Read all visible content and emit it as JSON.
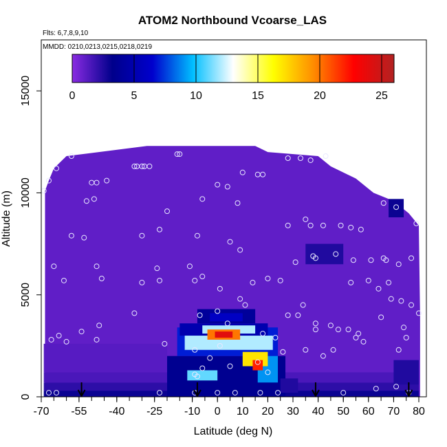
{
  "chart_data": {
    "type": "heatmap",
    "title": "ATOM2 Northbound Vcoarse_LAS",
    "subtitle_flights": "Flts: 6,7,8,9,10",
    "subtitle_dates": "MMDD: 0210,0213,0215,0218,0219",
    "xlabel": "Latitude (deg N)",
    "ylabel": "Altitude (m)",
    "xlim": [
      -70,
      83
    ],
    "ylim": [
      0,
      17500
    ],
    "x_ticks": [
      -70,
      -55,
      -40,
      -25,
      -10,
      0,
      10,
      20,
      30,
      40,
      50,
      60,
      70,
      80
    ],
    "x_tick_labels": [
      "-70",
      "-55",
      "-40",
      "-25",
      "-10",
      "0",
      "10",
      "20",
      "30",
      "40",
      "50",
      "60",
      "70",
      "80"
    ],
    "y_ticks": [
      0,
      5000,
      10000,
      15000
    ],
    "y_tick_labels": [
      "0",
      "5000",
      "10000",
      "15000"
    ],
    "colorbar": {
      "min": 0,
      "max": 26,
      "ticks": [
        0,
        5,
        10,
        15,
        20,
        25
      ],
      "tick_labels": [
        "0",
        "5",
        "10",
        "15",
        "20",
        "25"
      ],
      "colors": [
        "#8a2be2",
        "#00008b",
        "#0000cd",
        "#00bfff",
        "#ffffff",
        "#ffff00",
        "#ff8c00",
        "#ff0000",
        "#b22222"
      ]
    },
    "background_value": 1,
    "ceiling_profile": [
      {
        "lat": -68.5,
        "alt": 10100
      },
      {
        "lat": -67,
        "alt": 10600
      },
      {
        "lat": -65,
        "alt": 11200
      },
      {
        "lat": -60,
        "alt": 11800
      },
      {
        "lat": -28,
        "alt": 12300
      },
      {
        "lat": 15,
        "alt": 12300
      },
      {
        "lat": 20,
        "alt": 12000
      },
      {
        "lat": 40,
        "alt": 11800
      },
      {
        "lat": 45,
        "alt": 11300
      },
      {
        "lat": 55,
        "alt": 10700
      },
      {
        "lat": 62,
        "alt": 10000
      },
      {
        "lat": 70,
        "alt": 9600
      },
      {
        "lat": 76,
        "alt": 9000
      },
      {
        "lat": 80,
        "alt": 8400
      },
      {
        "lat": 80.5,
        "alt": 4000
      }
    ],
    "cells": [
      {
        "lat": [
          -69,
          80
        ],
        "alt": [
          0,
          300
        ],
        "value": 3
      },
      {
        "lat": [
          -69,
          80
        ],
        "alt": [
          300,
          700
        ],
        "value": 2.2
      },
      {
        "lat": [
          -69,
          80
        ],
        "alt": [
          700,
          1200
        ],
        "value": 1.5
      },
      {
        "lat": [
          -69,
          -20
        ],
        "alt": [
          1200,
          2600
        ],
        "value": 1.2
      },
      {
        "lat": [
          -20,
          27
        ],
        "alt": [
          0,
          2000
        ],
        "value": 3.5
      },
      {
        "lat": [
          -16,
          24
        ],
        "alt": [
          2000,
          3400
        ],
        "value": 7
      },
      {
        "lat": [
          -12,
          0
        ],
        "alt": [
          800,
          1300
        ],
        "value": 11
      },
      {
        "lat": [
          16,
          24
        ],
        "alt": [
          700,
          2000
        ],
        "value": 9
      },
      {
        "lat": [
          -13,
          22
        ],
        "alt": [
          2300,
          3000
        ],
        "value": 12
      },
      {
        "lat": [
          10,
          20
        ],
        "alt": [
          1500,
          2200
        ],
        "value": 17
      },
      {
        "lat": [
          14,
          18
        ],
        "alt": [
          1300,
          1800
        ],
        "value": 22
      },
      {
        "lat": [
          -15,
          20
        ],
        "alt": [
          3000,
          3600
        ],
        "value": 5
      },
      {
        "lat": [
          -6,
          15
        ],
        "alt": [
          3100,
          3500
        ],
        "value": 12
      },
      {
        "lat": [
          -4,
          9
        ],
        "alt": [
          2800,
          3300
        ],
        "value": 20
      },
      {
        "lat": [
          -1,
          6
        ],
        "alt": [
          2900,
          3200
        ],
        "value": 24
      },
      {
        "lat": [
          -8,
          15
        ],
        "alt": [
          3600,
          4300
        ],
        "value": 4
      },
      {
        "lat": [
          -3,
          10
        ],
        "alt": [
          3700,
          4100
        ],
        "value": 6
      },
      {
        "lat": [
          35,
          50
        ],
        "alt": [
          6500,
          7500
        ],
        "value": 2.5
      },
      {
        "lat": [
          68,
          74
        ],
        "alt": [
          8800,
          9700
        ],
        "value": 3
      },
      {
        "lat": [
          70,
          80
        ],
        "alt": [
          600,
          1800
        ],
        "value": 2.5
      },
      {
        "lat": [
          25,
          32
        ],
        "alt": [
          200,
          900
        ],
        "value": 2.5
      }
    ],
    "sample_points": [
      [
        -69,
        10100
      ],
      [
        -67,
        10600
      ],
      [
        -64,
        11200
      ],
      [
        -58,
        11800
      ],
      [
        -33,
        11300
      ],
      [
        -32,
        11300
      ],
      [
        -30,
        11300
      ],
      [
        -29,
        11300
      ],
      [
        -27,
        11300
      ],
      [
        -16,
        11900
      ],
      [
        -15,
        11900
      ],
      [
        10,
        11000
      ],
      [
        16,
        10900
      ],
      [
        18,
        10900
      ],
      [
        28,
        11700
      ],
      [
        33,
        11700
      ],
      [
        37,
        11600
      ],
      [
        43,
        11800
      ],
      [
        -50,
        10500
      ],
      [
        -48,
        10500
      ],
      [
        -44,
        10600
      ],
      [
        -52,
        9600
      ],
      [
        -49,
        9700
      ],
      [
        -20,
        9100
      ],
      [
        -6,
        9700
      ],
      [
        0,
        10400
      ],
      [
        4,
        10300
      ],
      [
        8,
        9500
      ],
      [
        -23,
        8200
      ],
      [
        -8,
        7900
      ],
      [
        -58,
        7900
      ],
      [
        -53,
        7800
      ],
      [
        -30,
        7900
      ],
      [
        5,
        7600
      ],
      [
        9,
        7200
      ],
      [
        28,
        8400
      ],
      [
        35,
        8700
      ],
      [
        37,
        8400
      ],
      [
        42,
        8400
      ],
      [
        49,
        8400
      ],
      [
        53,
        8300
      ],
      [
        57,
        8200
      ],
      [
        66,
        9500
      ],
      [
        71,
        9300
      ],
      [
        79,
        8500
      ],
      [
        -65,
        6400
      ],
      [
        -48,
        6400
      ],
      [
        -24,
        6300
      ],
      [
        -11,
        6400
      ],
      [
        -46,
        5800
      ],
      [
        -30,
        5600
      ],
      [
        -23,
        5700
      ],
      [
        -9,
        5700
      ],
      [
        -6,
        5900
      ],
      [
        1,
        5300
      ],
      [
        14,
        5600
      ],
      [
        20,
        5800
      ],
      [
        25,
        5700
      ],
      [
        31,
        6600
      ],
      [
        38,
        6900
      ],
      [
        39,
        6800
      ],
      [
        47,
        7000
      ],
      [
        54,
        6700
      ],
      [
        61,
        6700
      ],
      [
        66,
        6800
      ],
      [
        67,
        6700
      ],
      [
        72,
        6500
      ],
      [
        77,
        6800
      ],
      [
        53,
        5600
      ],
      [
        60,
        5700
      ],
      [
        64,
        5300
      ],
      [
        68,
        5600
      ],
      [
        69,
        4800
      ],
      [
        73,
        4700
      ],
      [
        77,
        4500
      ],
      [
        80,
        4100
      ],
      [
        -61,
        5700
      ],
      [
        -66,
        2800
      ],
      [
        -63,
        3000
      ],
      [
        -60,
        2700
      ],
      [
        -54,
        3200
      ],
      [
        -47,
        3500
      ],
      [
        -48,
        2800
      ],
      [
        -33,
        4100
      ],
      [
        -7,
        4000
      ],
      [
        0,
        4200
      ],
      [
        4,
        3600
      ],
      [
        9,
        4800
      ],
      [
        11,
        4500
      ],
      [
        18,
        3100
      ],
      [
        23,
        2900
      ],
      [
        28,
        4000
      ],
      [
        32,
        4000
      ],
      [
        34,
        4500
      ],
      [
        39,
        3600
      ],
      [
        39,
        3300
      ],
      [
        45,
        3500
      ],
      [
        48,
        3300
      ],
      [
        52,
        3300
      ],
      [
        56,
        3100
      ],
      [
        55,
        2900
      ],
      [
        58,
        2700
      ],
      [
        65,
        3900
      ],
      [
        74,
        3400
      ],
      [
        75,
        2900
      ],
      [
        72,
        2300
      ],
      [
        -21,
        2600
      ],
      [
        -9,
        2300
      ],
      [
        -3,
        1900
      ],
      [
        1,
        2500
      ],
      [
        5,
        1500
      ],
      [
        16,
        1700
      ],
      [
        20,
        1200
      ],
      [
        26,
        2200
      ],
      [
        -8,
        1000
      ],
      [
        -9,
        1100
      ],
      [
        -6,
        1400
      ],
      [
        35,
        2300
      ],
      [
        42,
        2000
      ],
      [
        46,
        2300
      ],
      [
        -67,
        200
      ],
      [
        -64,
        200
      ],
      [
        -23,
        200
      ],
      [
        -9,
        200
      ],
      [
        0,
        200
      ],
      [
        7,
        200
      ],
      [
        17,
        200
      ],
      [
        24,
        200
      ],
      [
        50,
        200
      ],
      [
        63,
        400
      ],
      [
        71,
        500
      ],
      [
        76,
        200
      ]
    ],
    "flight_markers": [
      -54,
      -8,
      39,
      76
    ]
  }
}
